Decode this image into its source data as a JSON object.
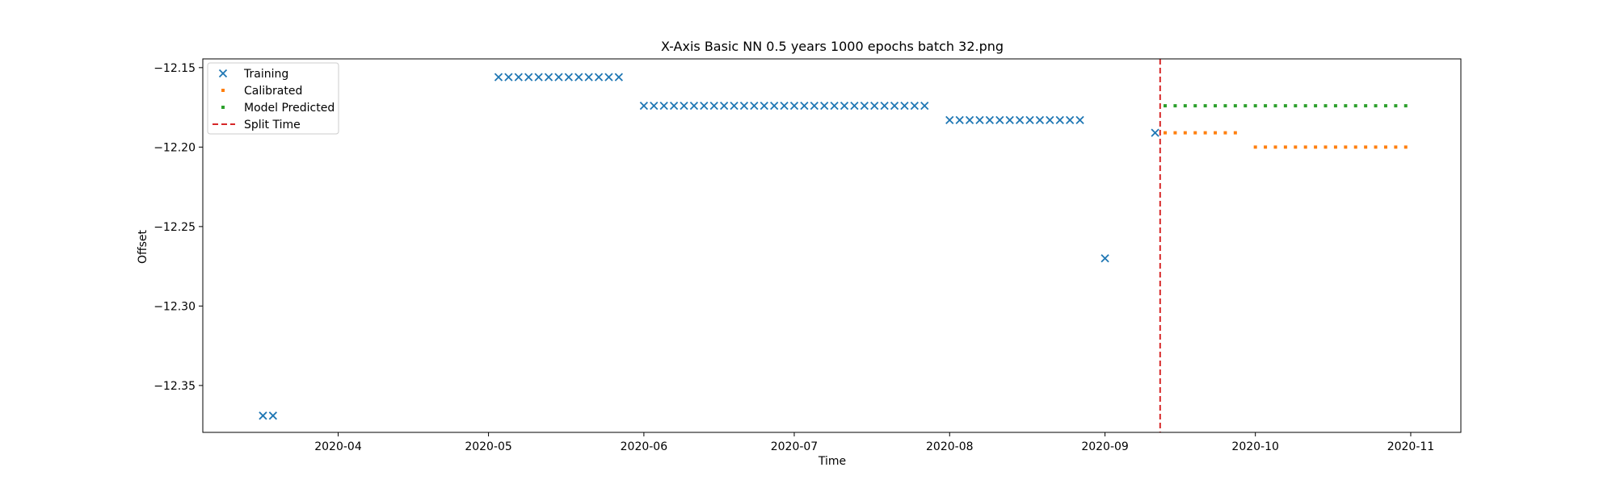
{
  "chart_data": {
    "type": "scatter",
    "title": "X-Axis Basic NN 0.5 years 1000 epochs batch 32.png",
    "xlabel": "Time",
    "ylabel": "Offset",
    "xlim": [
      "2020-03-05",
      "2020-11-11"
    ],
    "ylim": [
      -12.3795,
      -12.1445
    ],
    "x_ticks": [
      "2020-04",
      "2020-05",
      "2020-06",
      "2020-07",
      "2020-08",
      "2020-09",
      "2020-10",
      "2020-11"
    ],
    "y_ticks": [
      -12.15,
      -12.2,
      -12.25,
      -12.3,
      -12.35
    ],
    "y_tick_labels": [
      "−12.15",
      "−12.20",
      "−12.25",
      "−12.30",
      "−12.35"
    ],
    "legend_position": "top-left",
    "series": [
      {
        "name": "Training",
        "marker": "x",
        "color": "#1f77b4",
        "points": [
          [
            "2020-03-17",
            -12.369
          ],
          [
            "2020-03-19",
            -12.369
          ],
          [
            "2020-05-03",
            -12.156
          ],
          [
            "2020-05-05",
            -12.156
          ],
          [
            "2020-05-07",
            -12.156
          ],
          [
            "2020-05-09",
            -12.156
          ],
          [
            "2020-05-11",
            -12.156
          ],
          [
            "2020-05-13",
            -12.156
          ],
          [
            "2020-05-15",
            -12.156
          ],
          [
            "2020-05-17",
            -12.156
          ],
          [
            "2020-05-19",
            -12.156
          ],
          [
            "2020-05-21",
            -12.156
          ],
          [
            "2020-05-23",
            -12.156
          ],
          [
            "2020-05-25",
            -12.156
          ],
          [
            "2020-05-27",
            -12.156
          ],
          [
            "2020-06-01",
            -12.174
          ],
          [
            "2020-06-03",
            -12.174
          ],
          [
            "2020-06-05",
            -12.174
          ],
          [
            "2020-06-07",
            -12.174
          ],
          [
            "2020-06-09",
            -12.174
          ],
          [
            "2020-06-11",
            -12.174
          ],
          [
            "2020-06-13",
            -12.174
          ],
          [
            "2020-06-15",
            -12.174
          ],
          [
            "2020-06-17",
            -12.174
          ],
          [
            "2020-06-19",
            -12.174
          ],
          [
            "2020-06-21",
            -12.174
          ],
          [
            "2020-06-23",
            -12.174
          ],
          [
            "2020-06-25",
            -12.174
          ],
          [
            "2020-06-27",
            -12.174
          ],
          [
            "2020-06-29",
            -12.174
          ],
          [
            "2020-07-01",
            -12.174
          ],
          [
            "2020-07-03",
            -12.174
          ],
          [
            "2020-07-05",
            -12.174
          ],
          [
            "2020-07-07",
            -12.174
          ],
          [
            "2020-07-09",
            -12.174
          ],
          [
            "2020-07-11",
            -12.174
          ],
          [
            "2020-07-13",
            -12.174
          ],
          [
            "2020-07-15",
            -12.174
          ],
          [
            "2020-07-17",
            -12.174
          ],
          [
            "2020-07-19",
            -12.174
          ],
          [
            "2020-07-21",
            -12.174
          ],
          [
            "2020-07-23",
            -12.174
          ],
          [
            "2020-07-25",
            -12.174
          ],
          [
            "2020-07-27",
            -12.174
          ],
          [
            "2020-08-01",
            -12.183
          ],
          [
            "2020-08-03",
            -12.183
          ],
          [
            "2020-08-05",
            -12.183
          ],
          [
            "2020-08-07",
            -12.183
          ],
          [
            "2020-08-09",
            -12.183
          ],
          [
            "2020-08-11",
            -12.183
          ],
          [
            "2020-08-13",
            -12.183
          ],
          [
            "2020-08-15",
            -12.183
          ],
          [
            "2020-08-17",
            -12.183
          ],
          [
            "2020-08-19",
            -12.183
          ],
          [
            "2020-08-21",
            -12.183
          ],
          [
            "2020-08-23",
            -12.183
          ],
          [
            "2020-08-25",
            -12.183
          ],
          [
            "2020-08-27",
            -12.183
          ],
          [
            "2020-09-01",
            -12.27
          ],
          [
            "2020-09-11",
            -12.191
          ]
        ]
      },
      {
        "name": "Calibrated",
        "marker": "s",
        "color": "#ff7f0e",
        "points": [
          [
            "2020-09-13",
            -12.191
          ],
          [
            "2020-09-15",
            -12.191
          ],
          [
            "2020-09-17",
            -12.191
          ],
          [
            "2020-09-19",
            -12.191
          ],
          [
            "2020-09-21",
            -12.191
          ],
          [
            "2020-09-23",
            -12.191
          ],
          [
            "2020-09-25",
            -12.191
          ],
          [
            "2020-09-27",
            -12.191
          ],
          [
            "2020-10-01",
            -12.2
          ],
          [
            "2020-10-03",
            -12.2
          ],
          [
            "2020-10-05",
            -12.2
          ],
          [
            "2020-10-07",
            -12.2
          ],
          [
            "2020-10-09",
            -12.2
          ],
          [
            "2020-10-11",
            -12.2
          ],
          [
            "2020-10-13",
            -12.2
          ],
          [
            "2020-10-15",
            -12.2
          ],
          [
            "2020-10-17",
            -12.2
          ],
          [
            "2020-10-19",
            -12.2
          ],
          [
            "2020-10-21",
            -12.2
          ],
          [
            "2020-10-23",
            -12.2
          ],
          [
            "2020-10-25",
            -12.2
          ],
          [
            "2020-10-27",
            -12.2
          ],
          [
            "2020-10-29",
            -12.2
          ],
          [
            "2020-10-31",
            -12.2
          ]
        ]
      },
      {
        "name": "Model Predicted",
        "marker": "s",
        "color": "#2ca02c",
        "points": [
          [
            "2020-09-13",
            -12.174
          ],
          [
            "2020-09-15",
            -12.174
          ],
          [
            "2020-09-17",
            -12.174
          ],
          [
            "2020-09-19",
            -12.174
          ],
          [
            "2020-09-21",
            -12.174
          ],
          [
            "2020-09-23",
            -12.174
          ],
          [
            "2020-09-25",
            -12.174
          ],
          [
            "2020-09-27",
            -12.174
          ],
          [
            "2020-09-29",
            -12.174
          ],
          [
            "2020-10-01",
            -12.174
          ],
          [
            "2020-10-03",
            -12.174
          ],
          [
            "2020-10-05",
            -12.174
          ],
          [
            "2020-10-07",
            -12.174
          ],
          [
            "2020-10-09",
            -12.174
          ],
          [
            "2020-10-11",
            -12.174
          ],
          [
            "2020-10-13",
            -12.174
          ],
          [
            "2020-10-15",
            -12.174
          ],
          [
            "2020-10-17",
            -12.174
          ],
          [
            "2020-10-19",
            -12.174
          ],
          [
            "2020-10-21",
            -12.174
          ],
          [
            "2020-10-23",
            -12.174
          ],
          [
            "2020-10-25",
            -12.174
          ],
          [
            "2020-10-27",
            -12.174
          ],
          [
            "2020-10-29",
            -12.174
          ],
          [
            "2020-10-31",
            -12.174
          ]
        ]
      }
    ],
    "split_line": {
      "name": "Split Time",
      "x": "2020-09-12",
      "color": "#d62728",
      "style": "dashed"
    }
  }
}
